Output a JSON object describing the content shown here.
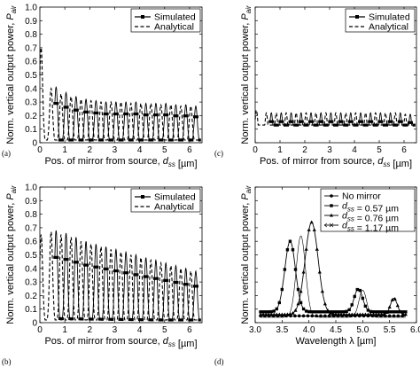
{
  "figure": {
    "width": 474,
    "height": 414
  },
  "chart_data": [
    {
      "panel": "(a)",
      "type": "line",
      "xlabel": "Pos. of mirror from source, d_ss [µm]",
      "ylabel": "Norm. vertical output power, P_air",
      "xlim": [
        0,
        6.5
      ],
      "ylim": [
        0,
        1.0
      ],
      "xticks": [
        0,
        1,
        2,
        3,
        4,
        5,
        6
      ],
      "xticklabels": [
        "0",
        "1",
        "2",
        "3",
        "4",
        "5",
        "6"
      ],
      "yticks": [
        0,
        0.1,
        0.2,
        0.3,
        0.4,
        0.5,
        0.6,
        0.7,
        0.8,
        0.9,
        1.0
      ],
      "yticklabels": [
        "0",
        "0.1",
        "0.2",
        "0.3",
        "0.4",
        "0.5",
        "0.6",
        "0.7",
        "0.8",
        "0.9",
        "1.0"
      ],
      "legend": {
        "position": "top-right",
        "entries": [
          "Simulated",
          "Analytical"
        ]
      },
      "model": {
        "period": 0.4,
        "first_peak": 0.25,
        "start_peak": 0.7,
        "decay": 0.75,
        "baseline": 0.22,
        "late_peak": 0.3,
        "floor": 0.03,
        "width": 0.085
      },
      "series": [
        {
          "name": "Simulated",
          "style": "solid-square",
          "x_from": 0.6,
          "x_to": 6.45,
          "peaks": [
            0.41,
            0.37,
            0.34,
            0.32,
            0.31,
            0.3,
            0.3,
            0.3,
            0.3,
            0.29,
            0.29,
            0.29,
            0.28,
            0.28,
            0.27
          ]
        },
        {
          "name": "Analytical",
          "style": "dashed",
          "x_from": 0.0,
          "x_to": 6.45,
          "peaks": [
            0.7,
            0.4,
            0.36,
            0.34,
            0.32,
            0.31,
            0.3,
            0.3,
            0.3,
            0.29,
            0.29,
            0.29,
            0.28,
            0.28,
            0.27,
            0.27
          ]
        }
      ]
    },
    {
      "panel": "(c)",
      "type": "line",
      "xlabel": "Pos. of mirror from source, d_ss [µm]",
      "ylabel": "Norm. vertical output power, P_air",
      "xlim": [
        0,
        6.5
      ],
      "ylim": [
        0,
        1.0
      ],
      "xticks": [
        0,
        1,
        2,
        3,
        4,
        5,
        6
      ],
      "xticklabels": [
        "0",
        "1",
        "2",
        "3",
        "4",
        "5",
        "6"
      ],
      "yticks": [
        0,
        0.1,
        0.2,
        0.3,
        0.4,
        0.5,
        0.6,
        0.7,
        0.8,
        0.9,
        1.0
      ],
      "yticklabels": [
        "",
        "",
        "",
        "",
        "",
        "",
        "",
        "",
        "",
        "",
        ""
      ],
      "legend": {
        "position": "top-right",
        "entries": [
          "Simulated",
          "Analytical"
        ]
      },
      "series": [
        {
          "name": "Simulated",
          "style": "solid-square",
          "x_from": 0.6,
          "x_to": 6.45,
          "peaks": [
            0.22,
            0.22,
            0.22,
            0.22,
            0.22,
            0.22,
            0.22,
            0.22,
            0.22,
            0.22,
            0.22,
            0.22,
            0.22,
            0.22,
            0.21
          ]
        },
        {
          "name": "Analytical",
          "style": "dashed",
          "x_from": 0.0,
          "x_to": 6.45,
          "peaks": [
            0.24,
            0.22,
            0.22,
            0.22,
            0.22,
            0.22,
            0.22,
            0.22,
            0.22,
            0.22,
            0.22,
            0.22,
            0.22,
            0.22,
            0.22,
            0.21
          ]
        }
      ]
    },
    {
      "panel": "(b)",
      "type": "line",
      "xlabel": "Pos. of mirror from source, d_ss [µm]",
      "ylabel": "Norm. vertical output power, P_air",
      "xlim": [
        0,
        6.5
      ],
      "ylim": [
        0,
        1.0
      ],
      "xticks": [
        0,
        1,
        2,
        3,
        4,
        5,
        6
      ],
      "xticklabels": [
        "0",
        "1",
        "2",
        "3",
        "4",
        "5",
        "6"
      ],
      "yticks": [
        0,
        0.1,
        0.2,
        0.3,
        0.4,
        0.5,
        0.6,
        0.7,
        0.8,
        0.9,
        1.0
      ],
      "yticklabels": [
        "0",
        "0.1",
        "0.2",
        "0.3",
        "0.4",
        "0.5",
        "0.6",
        "0.7",
        "0.8",
        "0.9",
        "1.0"
      ],
      "legend": {
        "position": "top-right",
        "entries": [
          "Simulated",
          "Analytical"
        ]
      },
      "series": [
        {
          "name": "Simulated",
          "style": "solid-square",
          "x_from": 0.6,
          "x_to": 6.45,
          "peaks": [
            0.68,
            0.66,
            0.63,
            0.6,
            0.58,
            0.56,
            0.54,
            0.52,
            0.5,
            0.48,
            0.46,
            0.44,
            0.42,
            0.4,
            0.38
          ]
        },
        {
          "name": "Analytical",
          "style": "dashed",
          "x_from": 0.0,
          "x_to": 6.45,
          "peaks": [
            0.65,
            0.67,
            0.65,
            0.63,
            0.6,
            0.58,
            0.56,
            0.54,
            0.52,
            0.5,
            0.48,
            0.46,
            0.44,
            0.42,
            0.4,
            0.38
          ]
        }
      ]
    },
    {
      "panel": "(d)",
      "type": "line",
      "xlabel": "Wavelength λ [µm]",
      "ylabel": "Norm. vertical output power, P_air",
      "xlim": [
        3.0,
        6.0
      ],
      "ylim": [
        0,
        1.0
      ],
      "xticks": [
        3.0,
        3.5,
        4.0,
        4.5,
        5.0,
        5.5,
        6.0
      ],
      "xticklabels": [
        "3.0",
        "3.5",
        "4.0",
        "4.5",
        "5.0",
        "5.5",
        "6.0"
      ],
      "yticks": [
        0,
        0.1,
        0.2,
        0.3,
        0.4,
        0.5,
        0.6,
        0.7,
        0.8,
        0.9,
        1.0
      ],
      "yticklabels": [
        "",
        "",
        "",
        "",
        "",
        "",
        "",
        "",
        "",
        "",
        ""
      ],
      "legend": {
        "position": "top-right",
        "entries": [
          "No mirror",
          "d_ss = 0.57 µm",
          "d_ss = 0.76 µm",
          "d_ss = 1.17 µm"
        ]
      },
      "series": [
        {
          "name": "No mirror",
          "marker": "circle",
          "x": [
            3.1,
            5.8
          ],
          "peaks": [],
          "base": 0.05
        },
        {
          "name": "d_ss = 0.57 µm",
          "marker": "square",
          "x": [
            3.1,
            5.8
          ],
          "base": 0.08,
          "peaks": [
            {
              "x": 3.65,
              "y": 0.52,
              "w": 0.14
            },
            {
              "x": 4.92,
              "y": 0.17,
              "w": 0.11
            }
          ]
        },
        {
          "name": "d_ss = 0.76 µm",
          "marker": "triangle",
          "x": [
            3.1,
            5.8
          ],
          "base": 0.06,
          "peaks": [
            {
              "x": 4.05,
              "y": 0.68,
              "w": 0.17
            },
            {
              "x": 5.58,
              "y": 0.12,
              "w": 0.09
            }
          ]
        },
        {
          "name": "d_ss = 1.17 µm",
          "marker": "none",
          "x": [
            3.1,
            5.8
          ],
          "base": 0.04,
          "peaks": [
            {
              "x": 3.85,
              "y": 0.6,
              "w": 0.12
            },
            {
              "x": 5.0,
              "y": 0.2,
              "w": 0.1
            }
          ]
        }
      ]
    }
  ]
}
